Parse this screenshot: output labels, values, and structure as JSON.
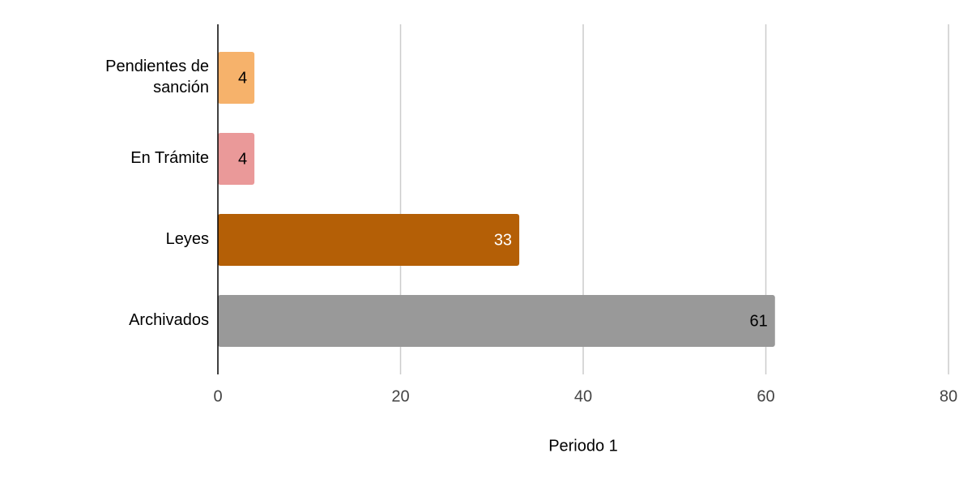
{
  "chart_data": {
    "type": "hbar",
    "x_label": "Periodo 1",
    "categories": [
      "Pendientes de sanción",
      "En Trámite",
      "Leyes",
      "Archivados"
    ],
    "values": [
      4,
      4,
      33,
      61
    ],
    "colors": [
      "#f6b26b",
      "#ea9999",
      "#b45f06",
      "#999999"
    ],
    "value_label_colors": [
      "#000000",
      "#000000",
      "#ffffff",
      "#000000"
    ],
    "xlim": [
      0,
      80
    ],
    "xticks": [
      0,
      20,
      40,
      60,
      80
    ],
    "grid": true
  }
}
